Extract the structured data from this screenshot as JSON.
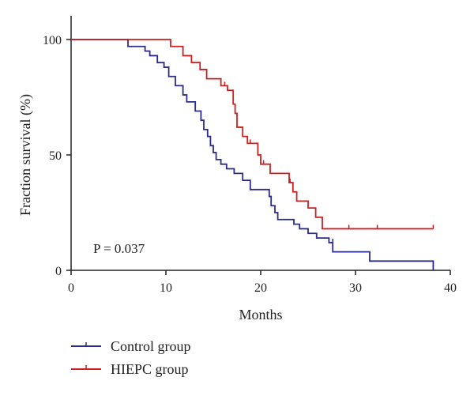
{
  "chart_data": {
    "type": "line",
    "xlabel": "Months",
    "ylabel": "Fraction survival (%)",
    "xlim": [
      0,
      40
    ],
    "ylim": [
      0,
      100
    ],
    "x_ticks": [
      0,
      10,
      20,
      30,
      40
    ],
    "y_ticks": [
      0,
      50,
      100
    ],
    "grid": false,
    "legend_position": "bottom-left, below plot",
    "annotation": "P = 0.037",
    "series": [
      {
        "name": "Control group",
        "color": "#2b2b8c",
        "steps": [
          [
            0,
            100
          ],
          [
            6,
            97
          ],
          [
            7.8,
            95
          ],
          [
            8.3,
            93
          ],
          [
            9.1,
            90
          ],
          [
            9.8,
            88
          ],
          [
            10.3,
            84
          ],
          [
            11,
            80
          ],
          [
            11.8,
            76
          ],
          [
            12.2,
            73
          ],
          [
            13.1,
            69
          ],
          [
            13.7,
            65
          ],
          [
            14,
            61
          ],
          [
            14.4,
            58
          ],
          [
            14.7,
            54
          ],
          [
            15,
            51
          ],
          [
            15.3,
            48
          ],
          [
            15.8,
            46
          ],
          [
            16.4,
            44
          ],
          [
            17.2,
            42
          ],
          [
            18.1,
            39
          ],
          [
            18.9,
            35
          ],
          [
            20.9,
            32
          ],
          [
            21.1,
            28
          ],
          [
            21.5,
            25
          ],
          [
            21.8,
            22
          ],
          [
            23.5,
            20
          ],
          [
            24.1,
            18
          ],
          [
            25,
            16
          ],
          [
            25.9,
            14
          ],
          [
            27.2,
            12
          ],
          [
            27.6,
            8
          ],
          [
            31.5,
            4
          ],
          [
            38.2,
            0
          ]
        ],
        "censored": [
          [
            27.6,
            12
          ]
        ]
      },
      {
        "name": "HIEPC group",
        "color": "#cc1f1f",
        "steps": [
          [
            0,
            100
          ],
          [
            10.5,
            97
          ],
          [
            11.8,
            93
          ],
          [
            12.7,
            90
          ],
          [
            13.6,
            87
          ],
          [
            14.3,
            83
          ],
          [
            15.8,
            80
          ],
          [
            16.5,
            78
          ],
          [
            17.1,
            72
          ],
          [
            17.3,
            68
          ],
          [
            17.5,
            62
          ],
          [
            18.1,
            58
          ],
          [
            18.6,
            55
          ],
          [
            19.7,
            50
          ],
          [
            20,
            46
          ],
          [
            21,
            42
          ],
          [
            23,
            38
          ],
          [
            23.4,
            34
          ],
          [
            23.8,
            30
          ],
          [
            25,
            27
          ],
          [
            25.8,
            23
          ],
          [
            26.5,
            18
          ],
          [
            38.2,
            18
          ]
        ],
        "censored": [
          [
            16.2,
            80
          ],
          [
            18.9,
            55
          ],
          [
            20.3,
            46
          ],
          [
            23.1,
            38
          ],
          [
            29.3,
            18
          ],
          [
            32.3,
            18
          ],
          [
            38.2,
            18
          ]
        ]
      }
    ]
  }
}
